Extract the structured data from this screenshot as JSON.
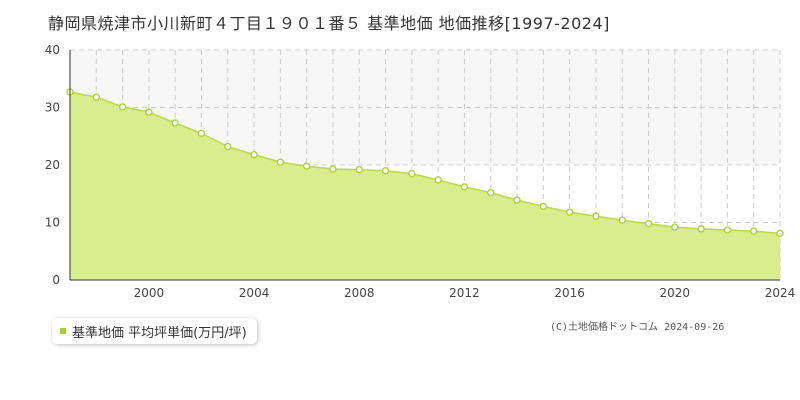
{
  "title": "静岡県焼津市小川新町４丁目１９０１番５ 基準地価 地価推移[1997-2024]",
  "legend": {
    "label": "基準地価 平均坪単価(万円/坪)"
  },
  "copyright": "(C)土地価格ドットコム 2024-09-26",
  "colors": {
    "fill": "#d9ec8e",
    "line": "#b9d94a",
    "marker_fill": "#ffffff",
    "marker_stroke": "#a8cf2c",
    "upper_band": "#f7f7f7",
    "grid": "#cccccc",
    "axis": "#333333"
  },
  "chart_data": {
    "type": "area",
    "x": [
      1997,
      1998,
      1999,
      2000,
      2001,
      2002,
      2003,
      2004,
      2005,
      2006,
      2007,
      2008,
      2009,
      2010,
      2011,
      2012,
      2013,
      2014,
      2015,
      2016,
      2017,
      2018,
      2019,
      2020,
      2021,
      2022,
      2023,
      2024
    ],
    "series": [
      {
        "name": "基準地価 平均坪単価(万円/坪)",
        "values": [
          32.7,
          31.8,
          30.1,
          29.2,
          27.3,
          25.5,
          23.2,
          21.8,
          20.5,
          19.8,
          19.3,
          19.2,
          19.0,
          18.5,
          17.4,
          16.2,
          15.2,
          13.9,
          12.8,
          11.8,
          11.1,
          10.4,
          9.8,
          9.2,
          8.9,
          8.7,
          8.5,
          8.1
        ]
      }
    ],
    "xlim": [
      1997,
      2024
    ],
    "ylim": [
      0,
      40
    ],
    "xticks": [
      2000,
      2004,
      2008,
      2012,
      2016,
      2020,
      2024
    ],
    "yticks": [
      0,
      10,
      20,
      30,
      40
    ],
    "grid": true,
    "legend_position": "bottom-left"
  }
}
